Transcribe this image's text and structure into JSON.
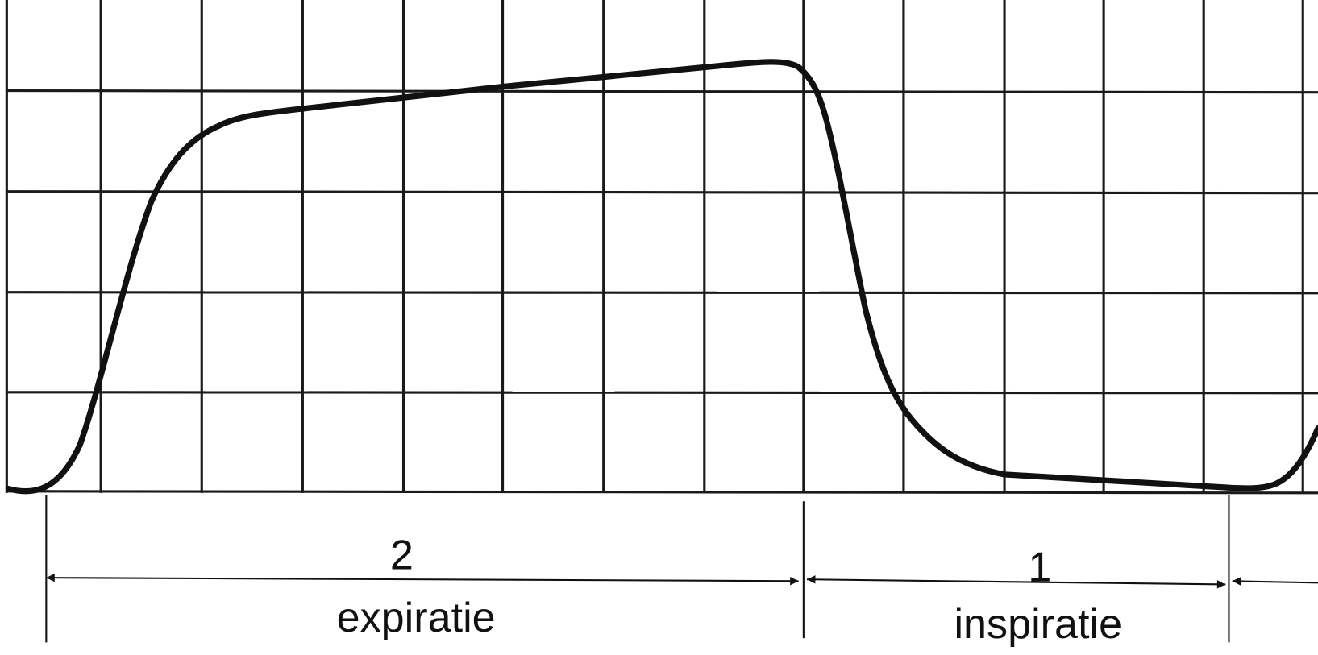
{
  "phases": [
    {
      "duration": 2,
      "label": "expiratie"
    },
    {
      "duration": 1,
      "label": "inspiratie"
    }
  ]
}
